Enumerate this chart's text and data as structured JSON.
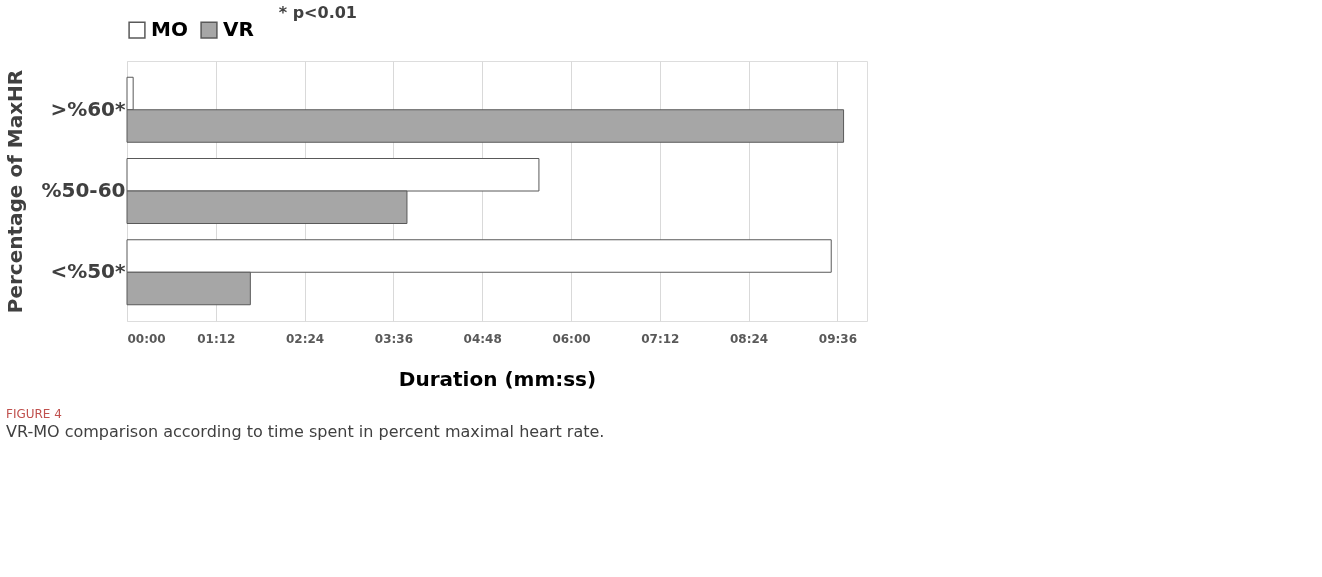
{
  "chart_data": {
    "type": "bar",
    "orientation": "horizontal",
    "title": "FIGURE 4",
    "subtitle": "VR-MO comparison according to time spent in percent maximal heart rate.",
    "xlabel": "Duration (mm:ss)",
    "ylabel": "Percentage of MaxHR",
    "categories": [
      ">%60*",
      "%50-60",
      "<%50*"
    ],
    "series": [
      {
        "name": "MO",
        "color": "#ffffff",
        "values": [
          5,
          334,
          571
        ]
      },
      {
        "name": "VR",
        "color": "#a6a6a6",
        "values": [
          581,
          227,
          100
        ]
      }
    ],
    "xlim": [
      0,
      600
    ],
    "xticks": [
      {
        "value": 0,
        "label": "00:00"
      },
      {
        "value": 72,
        "label": "01:12"
      },
      {
        "value": 144,
        "label": "02:24"
      },
      {
        "value": 216,
        "label": "03:36"
      },
      {
        "value": 288,
        "label": "04:48"
      },
      {
        "value": 360,
        "label": "06:00"
      },
      {
        "value": 432,
        "label": "07:12"
      },
      {
        "value": 504,
        "label": "08:24"
      },
      {
        "value": 576,
        "label": "09:36"
      }
    ],
    "grid": "x",
    "legend": "top",
    "annotations": [
      "* p<0.01"
    ]
  }
}
